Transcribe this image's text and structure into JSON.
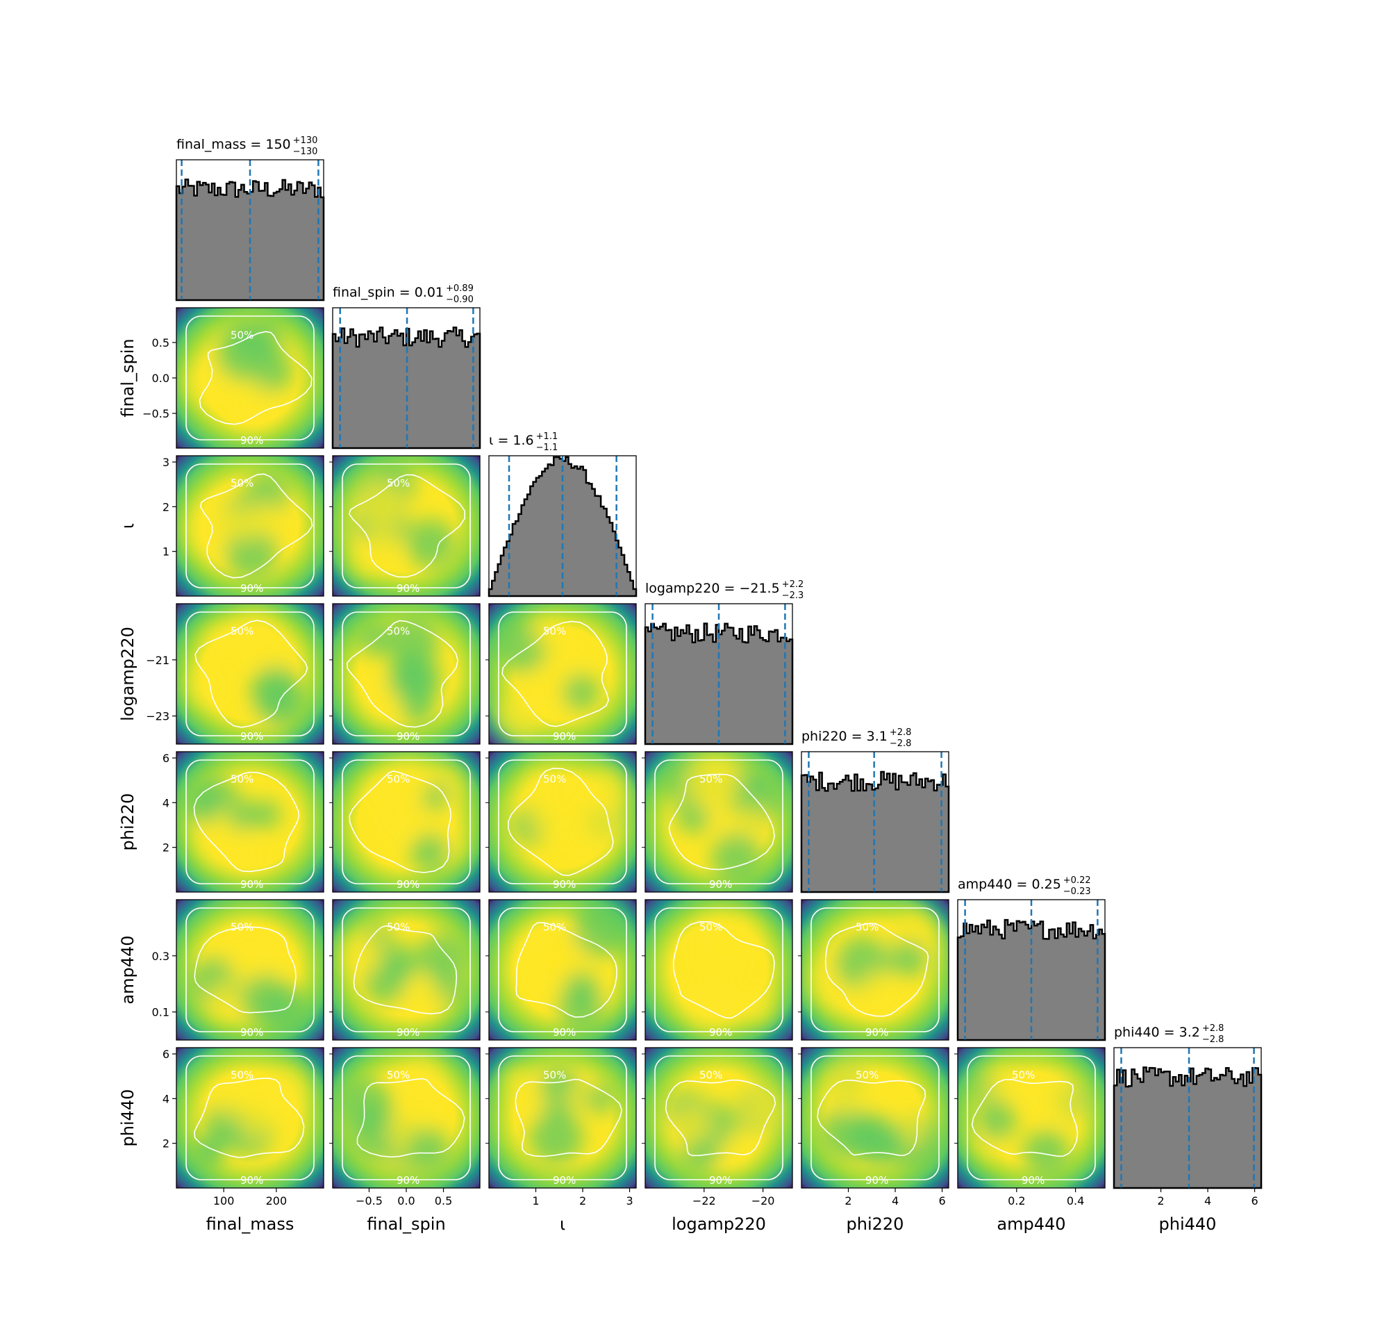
{
  "chart_data": {
    "type": "corner",
    "parameters": [
      {
        "key": "final_mass",
        "label": "final_mass",
        "range": [
          10,
          290
        ],
        "xticks": [
          100,
          200
        ],
        "xtick_labels": [
          "100",
          "200"
        ],
        "yticks": [],
        "ytick_labels": [],
        "summary": {
          "median": 150,
          "plus": 130,
          "minus": 130
        },
        "title_text": "final_mass = 150",
        "title_sup": "+130",
        "title_sub": "−130",
        "quantiles": [
          20,
          150,
          280
        ],
        "hist_shape": "uniform"
      },
      {
        "key": "final_spin",
        "label": "final_spin",
        "range": [
          -0.99,
          0.99
        ],
        "xticks": [
          -0.5,
          0.0,
          0.5
        ],
        "xtick_labels": [
          "−0.5",
          "0.0",
          "0.5"
        ],
        "yticks": [
          0.5,
          0.0,
          -0.5
        ],
        "ytick_labels": [
          "0.5",
          "0.0",
          "−0.5"
        ],
        "summary": {
          "median": 0.01,
          "plus": 0.89,
          "minus": 0.9
        },
        "title_text": "final_spin = 0.01",
        "title_sup": "+0.89",
        "title_sub": "−0.90",
        "quantiles": [
          -0.89,
          0.01,
          0.9
        ],
        "hist_shape": "uniform"
      },
      {
        "key": "inclination",
        "label": "ι",
        "range": [
          0,
          3.14
        ],
        "xticks": [
          1,
          2,
          3
        ],
        "xtick_labels": [
          "1",
          "2",
          "3"
        ],
        "yticks": [
          1,
          2,
          3
        ],
        "ytick_labels": [
          "1",
          "2",
          "3"
        ],
        "summary": {
          "median": 1.6,
          "plus": 1.1,
          "minus": 1.1
        },
        "title_text": "ι = 1.6",
        "title_sup": "+1.1",
        "title_sub": "−1.1",
        "quantiles": [
          0.43,
          1.57,
          2.72
        ],
        "hist_shape": "sine"
      },
      {
        "key": "logamp220",
        "label": "logamp220",
        "range": [
          -24,
          -19
        ],
        "xticks": [
          -22,
          -20
        ],
        "xtick_labels": [
          "−22",
          "−20"
        ],
        "yticks": [
          -21,
          -23
        ],
        "ytick_labels": [
          "−21",
          "−23"
        ],
        "summary": {
          "median": -21.5,
          "plus": 2.2,
          "minus": 2.3
        },
        "title_text": "logamp220 = −21.5",
        "title_sup": "+2.2",
        "title_sub": "−2.3",
        "quantiles": [
          -23.75,
          -21.5,
          -19.25
        ],
        "hist_shape": "uniform"
      },
      {
        "key": "phi220",
        "label": "phi220",
        "range": [
          0,
          6.28
        ],
        "xticks": [
          2,
          4,
          6
        ],
        "xtick_labels": [
          "2",
          "4",
          "6"
        ],
        "yticks": [
          2,
          4,
          6
        ],
        "ytick_labels": [
          "2",
          "4",
          "6"
        ],
        "summary": {
          "median": 3.1,
          "plus": 2.8,
          "minus": 2.8
        },
        "title_text": "phi220 = 3.1",
        "title_sup": "+2.8",
        "title_sub": "−2.8",
        "quantiles": [
          0.31,
          3.1,
          5.97
        ],
        "hist_shape": "uniform"
      },
      {
        "key": "amp440",
        "label": "amp440",
        "range": [
          0,
          0.5
        ],
        "xticks": [
          0.2,
          0.4
        ],
        "xtick_labels": [
          "0.2",
          "0.4"
        ],
        "yticks": [
          0.3,
          0.1
        ],
        "ytick_labels": [
          "0.3",
          "0.1"
        ],
        "summary": {
          "median": 0.25,
          "plus": 0.22,
          "minus": 0.23
        },
        "title_text": "amp440 = 0.25",
        "title_sup": "+0.22",
        "title_sub": "−0.23",
        "quantiles": [
          0.025,
          0.25,
          0.475
        ],
        "hist_shape": "uniform"
      },
      {
        "key": "phi440",
        "label": "phi440",
        "range": [
          0,
          6.28
        ],
        "xticks": [
          2,
          4,
          6
        ],
        "xtick_labels": [
          "2",
          "4",
          "6"
        ],
        "yticks": [
          2,
          4,
          6
        ],
        "ytick_labels": [
          "2",
          "4",
          "6"
        ],
        "summary": {
          "median": 3.2,
          "plus": 2.8,
          "minus": 2.8
        },
        "title_text": "phi440 = 3.2",
        "title_sup": "+2.8",
        "title_sub": "−2.8",
        "quantiles": [
          0.31,
          3.2,
          5.97
        ],
        "hist_shape": "uniform"
      }
    ],
    "hist_bins": 50,
    "contour_levels": [
      "50%",
      "90%"
    ],
    "colors": {
      "hist_fill": "#808080",
      "hist_edge": "#000000",
      "quantile_line": "#1f77b4",
      "density_cmap": [
        "#440154",
        "#3b528b",
        "#21918c",
        "#5ec962",
        "#a0da39",
        "#fde725"
      ],
      "contour": "#ffffff"
    }
  }
}
